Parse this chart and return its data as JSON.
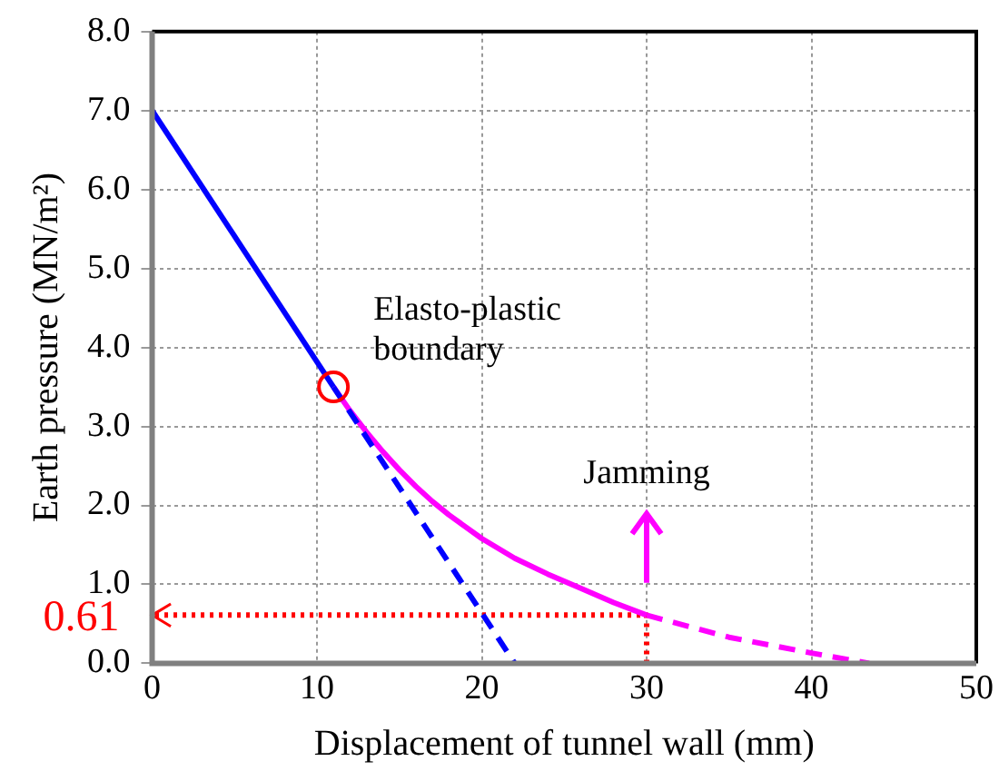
{
  "chart_data": {
    "type": "line",
    "xlabel": "Displacement of tunnel wall (mm)",
    "ylabel": "Earth pressure (MN/m²)",
    "xlim": [
      0,
      50
    ],
    "xticks": [
      0,
      10,
      20,
      30,
      40,
      50
    ],
    "ylim": [
      0,
      8
    ],
    "yticks": [
      {
        "value": 0,
        "label": "0.0"
      },
      {
        "value": 1,
        "label": "1.0"
      },
      {
        "value": 2,
        "label": "2.0"
      },
      {
        "value": 3,
        "label": "3.0"
      },
      {
        "value": 4,
        "label": "4.0"
      },
      {
        "value": 5,
        "label": "5.0"
      },
      {
        "value": 6,
        "label": "6.0"
      },
      {
        "value": 7,
        "label": "7.0"
      },
      {
        "value": 8,
        "label": "8.0"
      }
    ],
    "grid": true,
    "legend": false,
    "marker": "none",
    "series": [
      {
        "color": "#0000ff",
        "line_style": "solid",
        "x": [
          0,
          11
        ],
        "values": [
          7,
          3.5
        ]
      },
      {
        "color": "#0000ff",
        "line_style": "dashed",
        "x": [
          11,
          22
        ],
        "values": [
          3.5,
          0
        ]
      },
      {
        "color": "#ff00ff",
        "line_style": "solid",
        "x": [
          11,
          12,
          13,
          14,
          15,
          16,
          17,
          18,
          20,
          22,
          24,
          26,
          28,
          30
        ],
        "values": [
          3.5,
          3.2,
          2.93,
          2.68,
          2.45,
          2.24,
          2.05,
          1.88,
          1.58,
          1.33,
          1.13,
          0.95,
          0.77,
          0.61
        ]
      },
      {
        "color": "#ff00ff",
        "line_style": "dashed",
        "x": [
          30,
          35,
          40,
          43.5
        ],
        "values": [
          0.61,
          0.33,
          0.13,
          0
        ]
      },
      {
        "color": "#ff0000",
        "line_style": "dotted",
        "x": [
          30,
          30,
          0
        ],
        "values": [
          0,
          0.61,
          0.61
        ]
      },
      {
        "type": "scatter",
        "color": "#ff0000",
        "marker": "circle",
        "x": [
          11
        ],
        "values": [
          3.5
        ]
      }
    ],
    "annotations": [
      {
        "text": "Elasto-plastic boundary",
        "x": 11,
        "y": 3.5
      },
      "Jamming",
      {
        "text": "0.61",
        "x": 0,
        "y": 0.61
      }
    ]
  }
}
